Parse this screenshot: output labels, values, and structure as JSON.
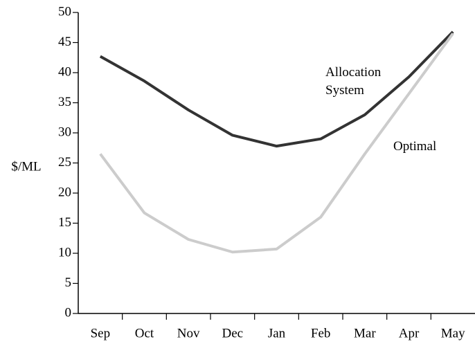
{
  "chart_data": {
    "type": "line",
    "y_label": "$/ML",
    "categories": [
      "Sep",
      "Oct",
      "Nov",
      "Dec",
      "Jan",
      "Feb",
      "Mar",
      "Apr",
      "May"
    ],
    "series": [
      {
        "name": "Allocation System",
        "color": "#333333",
        "values": [
          42.7,
          38.6,
          33.8,
          29.6,
          27.8,
          29.0,
          33.0,
          39.3,
          46.8
        ]
      },
      {
        "name": "Optimal",
        "color": "#cccccc",
        "values": [
          26.5,
          16.7,
          12.3,
          10.2,
          10.7,
          16.0,
          26.5,
          36.5,
          46.5
        ]
      }
    ],
    "ylim": [
      0,
      50
    ],
    "yticks": [
      0,
      5,
      10,
      15,
      20,
      25,
      30,
      35,
      40,
      45,
      50
    ],
    "grid": false
  }
}
